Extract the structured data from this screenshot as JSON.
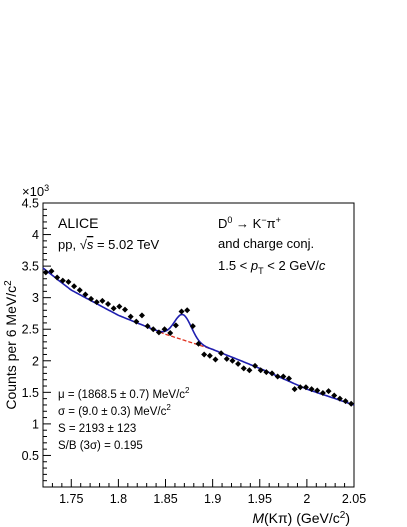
{
  "chart_data": {
    "type": "scatter",
    "xlabel_main": "M",
    "xlabel_rest": "(Kπ) (GeV/c",
    "xlabel_sup": "2",
    "xlabel_close": ")",
    "ylabel": "Counts per 6 MeV/c",
    "ylabel_sup": "2",
    "y_multiplier": "×10",
    "y_multiplier_exp": "3",
    "xlim": [
      1.72,
      2.05
    ],
    "ylim": [
      0,
      4.5
    ],
    "x_ticks": [
      1.75,
      1.8,
      1.85,
      1.9,
      1.95,
      2.0,
      2.05
    ],
    "x_tick_labels": [
      "1.75",
      "1.8",
      "1.85",
      "1.9",
      "1.95",
      "2",
      "2.05"
    ],
    "y_ticks": [
      0.5,
      1,
      1.5,
      2,
      2.5,
      3,
      3.5,
      4,
      4.5
    ],
    "y_tick_labels": [
      "0.5",
      "1",
      "1.5",
      "2",
      "2.5",
      "3",
      "3.5",
      "4",
      "4.5"
    ],
    "annotations": {
      "experiment": "ALICE",
      "system": "pp, ",
      "sqrt_s": "s",
      "energy": " = 5.02 TeV",
      "decay_d": "D",
      "decay_d_sup": "0",
      "decay_arrow": " → K",
      "decay_k_sup": "−",
      "decay_pi": "π",
      "decay_pi_sup": "+",
      "charge_conj": "and charge conj.",
      "pt_lo": "1.5 < ",
      "pt_p": "p",
      "pt_sub": "T",
      "pt_hi": " < 2 GeV/",
      "pt_c": "c",
      "mu_text": "μ = (1868.5 ± 0.7) MeV/c",
      "mu_sup": "2",
      "sigma_text": "σ = (9.0 ± 0.3) MeV/c",
      "sigma_sup": "2",
      "signal_text": "S = 2193 ± 123",
      "sb_text": "S/B (3σ) = 0.195"
    },
    "fit": {
      "mu": 1.8685,
      "sigma": 0.009,
      "peak_amplitude": 0.4,
      "background": [
        [
          1.72,
          3.47
        ],
        [
          1.75,
          3.12
        ],
        [
          1.8,
          2.72
        ],
        [
          1.85,
          2.42
        ],
        [
          1.9,
          2.18
        ],
        [
          1.95,
          1.88
        ],
        [
          2.0,
          1.55
        ],
        [
          2.05,
          1.3
        ]
      ]
    },
    "series": [
      {
        "x": [
          1.723,
          1.729,
          1.735,
          1.741,
          1.747,
          1.753,
          1.759,
          1.765,
          1.771,
          1.777,
          1.783,
          1.789,
          1.795,
          1.801,
          1.807,
          1.813,
          1.819,
          1.825,
          1.831,
          1.837,
          1.843,
          1.849,
          1.855,
          1.861,
          1.867,
          1.873,
          1.879,
          1.885,
          1.891,
          1.897,
          1.903,
          1.909,
          1.915,
          1.921,
          1.927,
          1.933,
          1.939,
          1.945,
          1.951,
          1.957,
          1.963,
          1.969,
          1.975,
          1.981,
          1.987,
          1.993,
          1.999,
          2.005,
          2.011,
          2.017,
          2.023,
          2.029,
          2.035,
          2.041,
          2.047
        ],
        "y": [
          3.4,
          3.42,
          3.32,
          3.27,
          3.25,
          3.18,
          3.12,
          3.05,
          2.98,
          2.93,
          2.95,
          2.9,
          2.83,
          2.86,
          2.81,
          2.7,
          2.62,
          2.72,
          2.55,
          2.5,
          2.45,
          2.5,
          2.44,
          2.56,
          2.78,
          2.8,
          2.55,
          2.27,
          2.1,
          2.08,
          2.02,
          2.12,
          2.03,
          2.0,
          1.95,
          1.88,
          1.85,
          1.92,
          1.85,
          1.82,
          1.8,
          1.75,
          1.75,
          1.72,
          1.55,
          1.58,
          1.58,
          1.55,
          1.53,
          1.49,
          1.52,
          1.45,
          1.4,
          1.36,
          1.32
        ],
        "err": [
          0.03,
          0.03,
          0.03,
          0.03,
          0.03,
          0.03,
          0.03,
          0.03,
          0.03,
          0.03,
          0.03,
          0.03,
          0.03,
          0.03,
          0.03,
          0.03,
          0.03,
          0.03,
          0.03,
          0.03,
          0.03,
          0.03,
          0.03,
          0.03,
          0.03,
          0.03,
          0.03,
          0.03,
          0.03,
          0.03,
          0.03,
          0.03,
          0.03,
          0.03,
          0.03,
          0.03,
          0.03,
          0.03,
          0.03,
          0.03,
          0.03,
          0.03,
          0.03,
          0.03,
          0.03,
          0.03,
          0.03,
          0.03,
          0.03,
          0.03,
          0.03,
          0.03,
          0.03,
          0.03,
          0.03
        ]
      }
    ],
    "colors": {
      "total_fit": "#1f1fb0",
      "background_fit": "#e0301e",
      "markers": "#000000",
      "axes": "#000000"
    },
    "grid": false,
    "legend": "none"
  }
}
